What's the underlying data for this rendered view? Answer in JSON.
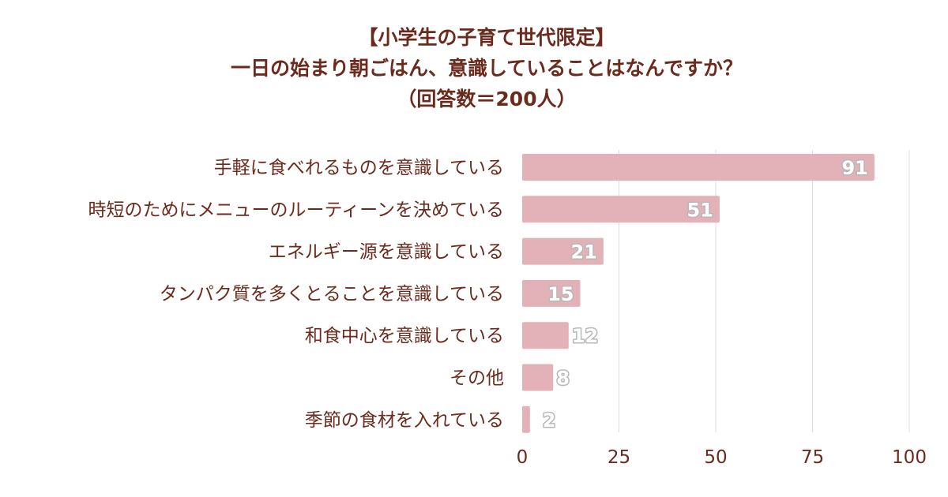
{
  "chart_data": {
    "type": "bar",
    "orientation": "horizontal",
    "title_lines": [
      "【小学生の子育て世代限定】",
      "一日の始まり朝ごはん、意識していることはなんですか？",
      "（回答数＝200人）"
    ],
    "categories": [
      "手軽に食べれるものを意識している",
      "時短のためにメニューのルーティーンを決めている",
      "エネルギー源を意識している",
      "タンパク質を多くとることを意識している",
      "和食中心を意識している",
      "その他",
      "季節の食材を入れている"
    ],
    "values": [
      91,
      51,
      21,
      15,
      12,
      8,
      2
    ],
    "xlim": [
      0,
      100
    ],
    "xticks": [
      0,
      25,
      50,
      75,
      100
    ],
    "grid": true,
    "bar_color": "#e3b1b8",
    "text_color": "#6b2a1c",
    "xlabel": "",
    "ylabel": ""
  }
}
